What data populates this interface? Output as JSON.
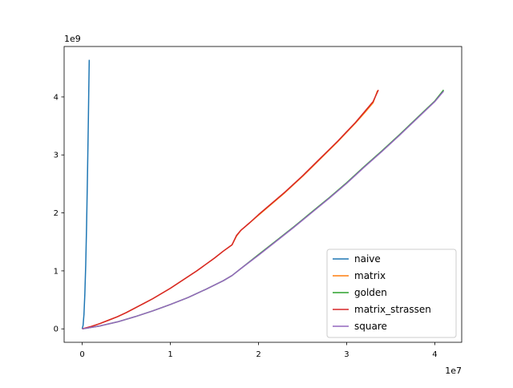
{
  "chart_data": {
    "type": "line",
    "title": "",
    "xlabel": "",
    "ylabel": "",
    "x_offset_label": "1e7",
    "y_offset_label": "1e9",
    "x_ticks": [
      {
        "value": 0,
        "label": "0"
      },
      {
        "value": 10000000,
        "label": "1"
      },
      {
        "value": 20000000,
        "label": "2"
      },
      {
        "value": 30000000,
        "label": "3"
      },
      {
        "value": 40000000,
        "label": "4"
      }
    ],
    "y_ticks": [
      {
        "value": 0,
        "label": "0"
      },
      {
        "value": 1000000000,
        "label": "1"
      },
      {
        "value": 2000000000,
        "label": "2"
      },
      {
        "value": 3000000000,
        "label": "3"
      },
      {
        "value": 4000000000,
        "label": "4"
      }
    ],
    "xlim": [
      -2050000,
      43050000
    ],
    "ylim": [
      -232000000,
      4870000000
    ],
    "grid": false,
    "legend_position": "lower-right",
    "series": [
      {
        "name": "naive",
        "color": "#1f77b4",
        "x": [
          0,
          100000,
          200000,
          300000,
          400000,
          500000,
          600000,
          700000,
          750000,
          800000
        ],
        "y": [
          0,
          60000000,
          250000000,
          600000000,
          1100000000,
          1800000000,
          2650000000,
          3600000000,
          4150000000,
          4640000000
        ]
      },
      {
        "name": "matrix",
        "color": "#ff7f0e",
        "x": [
          0,
          1000000,
          2000000,
          3000000,
          4000000,
          5000000,
          6000000,
          7000000,
          8000000,
          9000000,
          10000000,
          11000000,
          12000000,
          13000000,
          14000000,
          15000000,
          16000000,
          17000000,
          17500000,
          18000000,
          19000000,
          20000000,
          21000000,
          22000000,
          23000000,
          24000000,
          25000000,
          26000000,
          27000000,
          28000000,
          29000000,
          30000000,
          31000000,
          32000000,
          33000000,
          33500000
        ],
        "y": [
          0,
          40000000,
          90000000,
          150000000,
          210000000,
          280000000,
          360000000,
          440000000,
          520000000,
          610000000,
          700000000,
          800000000,
          900000000,
          1000000000,
          1110000000,
          1220000000,
          1340000000,
          1450000000,
          1600000000,
          1700000000,
          1830000000,
          1960000000,
          2090000000,
          2220000000,
          2350000000,
          2490000000,
          2630000000,
          2780000000,
          2930000000,
          3080000000,
          3230000000,
          3390000000,
          3550000000,
          3720000000,
          3900000000,
          4110000000
        ]
      },
      {
        "name": "golden",
        "color": "#2ca02c",
        "x": [
          0,
          2000000,
          4000000,
          6000000,
          8000000,
          10000000,
          12000000,
          14000000,
          16000000,
          17000000,
          18000000,
          20000000,
          22000000,
          24000000,
          26000000,
          28000000,
          30000000,
          32000000,
          34000000,
          36000000,
          38000000,
          40000000,
          41000000
        ],
        "y": [
          0,
          50000000,
          120000000,
          210000000,
          310000000,
          420000000,
          540000000,
          680000000,
          830000000,
          920000000,
          1040000000,
          1280000000,
          1520000000,
          1760000000,
          2010000000,
          2260000000,
          2520000000,
          2800000000,
          3070000000,
          3350000000,
          3640000000,
          3930000000,
          4120000000
        ]
      },
      {
        "name": "matrix_strassen",
        "color": "#d62728",
        "x": [
          0,
          1000000,
          2000000,
          3000000,
          4000000,
          5000000,
          6000000,
          7000000,
          8000000,
          9000000,
          10000000,
          11000000,
          12000000,
          13000000,
          14000000,
          15000000,
          16000000,
          17000000,
          17500000,
          18000000,
          19000000,
          20000000,
          21000000,
          22000000,
          23000000,
          24000000,
          25000000,
          26000000,
          27000000,
          28000000,
          29000000,
          30000000,
          31000000,
          32000000,
          33000000,
          33600000
        ],
        "y": [
          0,
          40000000,
          90000000,
          150000000,
          210000000,
          280000000,
          360000000,
          440000000,
          520000000,
          610000000,
          700000000,
          800000000,
          900000000,
          1000000000,
          1110000000,
          1220000000,
          1340000000,
          1450000000,
          1610000000,
          1700000000,
          1830000000,
          1970000000,
          2100000000,
          2230000000,
          2360000000,
          2500000000,
          2640000000,
          2790000000,
          2940000000,
          3090000000,
          3240000000,
          3400000000,
          3560000000,
          3740000000,
          3920000000,
          4120000000
        ]
      },
      {
        "name": "square",
        "color": "#9467bd",
        "x": [
          0,
          2000000,
          4000000,
          6000000,
          8000000,
          10000000,
          12000000,
          14000000,
          16000000,
          17000000,
          18000000,
          20000000,
          22000000,
          24000000,
          26000000,
          28000000,
          30000000,
          32000000,
          34000000,
          36000000,
          38000000,
          40000000,
          41000000
        ],
        "y": [
          0,
          50000000,
          120000000,
          210000000,
          310000000,
          420000000,
          540000000,
          680000000,
          830000000,
          920000000,
          1040000000,
          1270000000,
          1510000000,
          1750000000,
          2000000000,
          2250000000,
          2510000000,
          2790000000,
          3060000000,
          3340000000,
          3630000000,
          3920000000,
          4100000000
        ]
      }
    ]
  }
}
